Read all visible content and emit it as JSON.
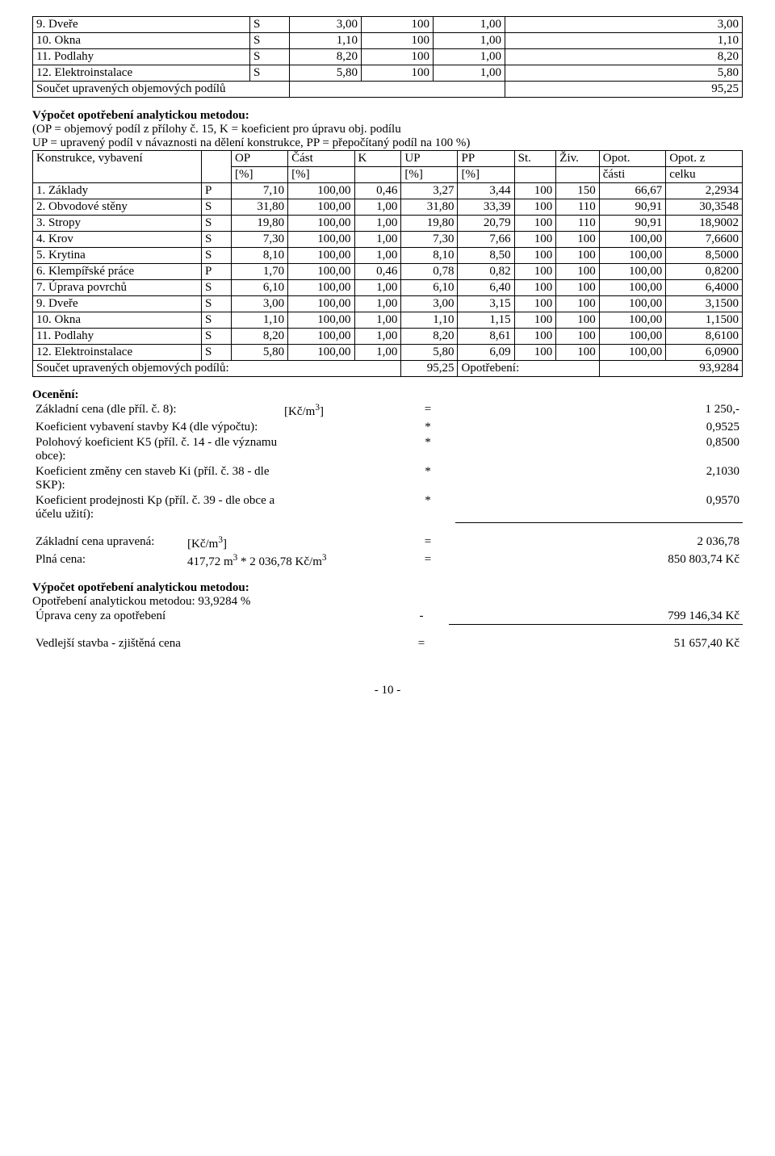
{
  "table1": {
    "rows": [
      {
        "name": "9. Dveře",
        "code": "S",
        "c1": "3,00",
        "c2": "100",
        "c3": "1,00",
        "c4": "3,00"
      },
      {
        "name": "10. Okna",
        "code": "S",
        "c1": "1,10",
        "c2": "100",
        "c3": "1,00",
        "c4": "1,10"
      },
      {
        "name": "11. Podlahy",
        "code": "S",
        "c1": "8,20",
        "c2": "100",
        "c3": "1,00",
        "c4": "8,20"
      },
      {
        "name": "12. Elektroinstalace",
        "code": "S",
        "c1": "5,80",
        "c2": "100",
        "c3": "1,00",
        "c4": "5,80"
      }
    ],
    "sum_label": "Součet upravených objemových podílů",
    "sum_value": "95,25"
  },
  "calc1": {
    "title": "Výpočet opotřebení analytickou metodou:",
    "line1": "(OP = objemový podíl z přílohy č. 15, K = koeficient pro úpravu obj. podílu",
    "line2": "UP = upravený podíl v návaznosti na dělení konstrukce, PP = přepočítaný podíl na 100 %)"
  },
  "table2": {
    "header": {
      "c0": "Konstrukce, vybavení",
      "c1": "OP",
      "c2": "Část",
      "c3": "K",
      "c4": "UP",
      "c5": "PP",
      "c6": "St.",
      "c7": "Živ.",
      "c8": "Opot.",
      "c9": "Opot. z",
      "u1": "[%]",
      "u2": "[%]",
      "u4": "[%]",
      "u5": "[%]",
      "u8": "části",
      "u9": "celku"
    },
    "rows": [
      {
        "name": "1. Základy",
        "code": "P",
        "op": "7,10",
        "cast": "100,00",
        "k": "0,46",
        "up": "3,27",
        "pp": "3,44",
        "st": "100",
        "ziv": "150",
        "oc": "66,67",
        "ocelku": "2,2934"
      },
      {
        "name": "2. Obvodové stěny",
        "code": "S",
        "op": "31,80",
        "cast": "100,00",
        "k": "1,00",
        "up": "31,80",
        "pp": "33,39",
        "st": "100",
        "ziv": "110",
        "oc": "90,91",
        "ocelku": "30,3548"
      },
      {
        "name": "3. Stropy",
        "code": "S",
        "op": "19,80",
        "cast": "100,00",
        "k": "1,00",
        "up": "19,80",
        "pp": "20,79",
        "st": "100",
        "ziv": "110",
        "oc": "90,91",
        "ocelku": "18,9002"
      },
      {
        "name": "4. Krov",
        "code": "S",
        "op": "7,30",
        "cast": "100,00",
        "k": "1,00",
        "up": "7,30",
        "pp": "7,66",
        "st": "100",
        "ziv": "100",
        "oc": "100,00",
        "ocelku": "7,6600"
      },
      {
        "name": "5. Krytina",
        "code": "S",
        "op": "8,10",
        "cast": "100,00",
        "k": "1,00",
        "up": "8,10",
        "pp": "8,50",
        "st": "100",
        "ziv": "100",
        "oc": "100,00",
        "ocelku": "8,5000"
      },
      {
        "name": "6. Klempířské práce",
        "code": "P",
        "op": "1,70",
        "cast": "100,00",
        "k": "0,46",
        "up": "0,78",
        "pp": "0,82",
        "st": "100",
        "ziv": "100",
        "oc": "100,00",
        "ocelku": "0,8200"
      },
      {
        "name": "7. Úprava povrchů",
        "code": "S",
        "op": "6,10",
        "cast": "100,00",
        "k": "1,00",
        "up": "6,10",
        "pp": "6,40",
        "st": "100",
        "ziv": "100",
        "oc": "100,00",
        "ocelku": "6,4000"
      },
      {
        "name": "9. Dveře",
        "code": "S",
        "op": "3,00",
        "cast": "100,00",
        "k": "1,00",
        "up": "3,00",
        "pp": "3,15",
        "st": "100",
        "ziv": "100",
        "oc": "100,00",
        "ocelku": "3,1500"
      },
      {
        "name": "10. Okna",
        "code": "S",
        "op": "1,10",
        "cast": "100,00",
        "k": "1,00",
        "up": "1,10",
        "pp": "1,15",
        "st": "100",
        "ziv": "100",
        "oc": "100,00",
        "ocelku": "1,1500"
      },
      {
        "name": "11. Podlahy",
        "code": "S",
        "op": "8,20",
        "cast": "100,00",
        "k": "1,00",
        "up": "8,20",
        "pp": "8,61",
        "st": "100",
        "ziv": "100",
        "oc": "100,00",
        "ocelku": "8,6100"
      },
      {
        "name": "12. Elektroinstalace",
        "code": "S",
        "op": "5,80",
        "cast": "100,00",
        "k": "1,00",
        "up": "5,80",
        "pp": "6,09",
        "st": "100",
        "ziv": "100",
        "oc": "100,00",
        "ocelku": "6,0900"
      }
    ],
    "sum_label": "Součet upravených objemových podílů:",
    "sum_value": "95,25",
    "opot_label": "Opotřebení:",
    "opot_value": "93,9284"
  },
  "oceneni": {
    "title": "Ocenění:",
    "rows": [
      {
        "label": "Základní cena (dle příl. č. 8):",
        "unit": "[Kč/m",
        "sup": "3",
        "unit2": "]",
        "op": "=",
        "val": "1 250,-"
      },
      {
        "label": "Koeficient vybavení stavby K4 (dle výpočtu):",
        "unit": "",
        "op": "*",
        "val": "0,9525"
      },
      {
        "label": "Polohový koeficient K5 (příl. č. 14 - dle významu obce):",
        "unit": "",
        "op": "*",
        "val": "0,8500"
      },
      {
        "label": "Koeficient změny cen staveb Ki (příl. č. 38 - dle SKP):",
        "unit": "",
        "op": "*",
        "val": "2,1030"
      },
      {
        "label": "Koeficient prodejnosti Kp (příl. č. 39 - dle obce a účelu užití):",
        "unit": "",
        "op": "*",
        "val": "0,9570"
      }
    ]
  },
  "result1": {
    "r1_label": "Základní cena upravená:",
    "r1_unit": "[Kč/m",
    "r1_sup": "3",
    "r1_unit2": "]",
    "r1_op": "=",
    "r1_val": "2 036,78",
    "r2_label": "Plná cena:",
    "r2_calc": "417,72 m",
    "r2_sup1": "3",
    "r2_calc2": " * 2 036,78 Kč/m",
    "r2_sup2": "3",
    "r2_op": "=",
    "r2_val": "850 803,74 Kč"
  },
  "calc2": {
    "title": "Výpočet opotřebení analytickou metodou:",
    "line1": "Opotřebení analytickou metodou: 93,9284 %",
    "line2": "Úprava ceny za opotřebení",
    "op": "-",
    "val": "799 146,34 Kč"
  },
  "final": {
    "label": "Vedlejší stavba - zjištěná cena",
    "op": "=",
    "val": "51 657,40 Kč"
  },
  "footer": "- 10 -"
}
